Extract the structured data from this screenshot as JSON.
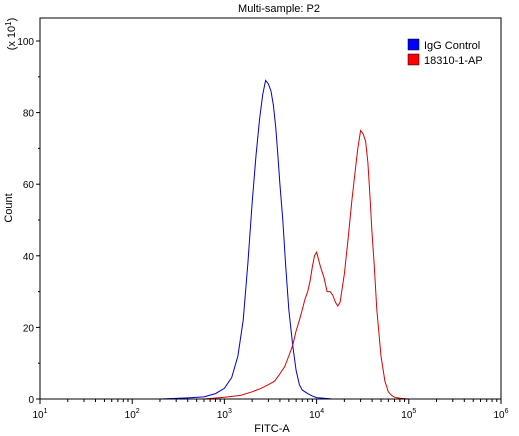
{
  "chart_data": {
    "type": "line",
    "title": "Multi-sample: P2",
    "xlabel": "FITC-A",
    "ylabel": "Count",
    "y_multiplier_label": "(x 10",
    "y_multiplier_exp": "1",
    "x_scale": "log",
    "xlim": [
      10,
      1000000
    ],
    "ylim": [
      0,
      110
    ],
    "x_ticks": [
      {
        "value": 10,
        "base": "10",
        "exp": "1"
      },
      {
        "value": 100,
        "base": "10",
        "exp": "2"
      },
      {
        "value": 1000,
        "base": "10",
        "exp": "3"
      },
      {
        "value": 10000,
        "base": "10",
        "exp": "4"
      },
      {
        "value": 100000,
        "base": "10",
        "exp": "5"
      },
      {
        "value": 1000000,
        "base": "10",
        "exp": "6"
      }
    ],
    "y_ticks": [
      0,
      20,
      40,
      60,
      80,
      100
    ],
    "grid": false,
    "legend_position": "top-right",
    "series": [
      {
        "name": "IgG Control",
        "color": "#0000cc",
        "legend_swatch": "#0000ff",
        "x": [
          200,
          400,
          600,
          800,
          1000,
          1200,
          1400,
          1600,
          1800,
          2000,
          2200,
          2400,
          2600,
          2800,
          3000,
          3200,
          3400,
          3600,
          3800,
          4000,
          4300,
          4600,
          5000,
          5500,
          6000,
          6500,
          7000,
          8000,
          9000,
          10000,
          12000,
          15000
        ],
        "y": [
          0,
          0.3,
          0.6,
          1.5,
          3,
          6,
          12,
          22,
          38,
          55,
          68,
          78,
          85,
          89,
          88,
          86,
          82,
          76,
          68,
          60,
          50,
          38,
          25,
          15,
          8,
          4,
          2.5,
          1.5,
          0.8,
          0.4,
          0.2,
          0
        ]
      },
      {
        "name": "18310-1-AP",
        "color": "#dd0000",
        "legend_swatch": "#ff0000",
        "x": [
          600,
          1000,
          1500,
          2000,
          2500,
          3000,
          3500,
          4000,
          4500,
          5000,
          5500,
          6000,
          6500,
          7000,
          7500,
          8000,
          8500,
          9000,
          9500,
          10000,
          11000,
          12000,
          13000,
          14000,
          15000,
          16000,
          17000,
          18000,
          20000,
          22000,
          24000,
          26000,
          28000,
          30000,
          32000,
          34000,
          36000,
          38000,
          40000,
          42000,
          45000,
          50000,
          55000,
          60000,
          65000,
          70000,
          80000,
          90000,
          100000
        ],
        "y": [
          0,
          0.5,
          1,
          2,
          3,
          4,
          5,
          7,
          9,
          12,
          15,
          19,
          22,
          25,
          28,
          30,
          33,
          37,
          40,
          41,
          37,
          34,
          30,
          30,
          29,
          27,
          26,
          27,
          35,
          45,
          55,
          63,
          70,
          75,
          74,
          72,
          66,
          56,
          46,
          38,
          25,
          12,
          5,
          2,
          1,
          0.5,
          0.2,
          0.1,
          0
        ]
      }
    ]
  }
}
